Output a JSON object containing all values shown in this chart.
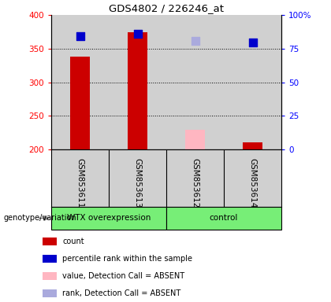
{
  "title": "GDS4802 / 226246_at",
  "samples": [
    "GSM853611",
    "GSM853613",
    "GSM853612",
    "GSM853614"
  ],
  "groups": [
    "WTX overexpression",
    "WTX overexpression",
    "control",
    "control"
  ],
  "group_label": "genotype/variation",
  "bar_bottom": 200,
  "ylim_left": [
    200,
    400
  ],
  "ylim_right": [
    0,
    100
  ],
  "yticks_left": [
    200,
    250,
    300,
    350,
    400
  ],
  "yticks_right": [
    0,
    25,
    50,
    75,
    100
  ],
  "ytick_right_labels": [
    "0",
    "25",
    "50",
    "75",
    "100%"
  ],
  "count_values": [
    338,
    375,
    null,
    211
  ],
  "count_absent": [
    null,
    null,
    229,
    null
  ],
  "rank_values": [
    369,
    372,
    null,
    359
  ],
  "rank_absent": [
    null,
    null,
    362,
    null
  ],
  "bar_color_present": "#cc0000",
  "bar_color_absent": "#FFB6C1",
  "dot_color_present": "#0000cc",
  "dot_color_absent": "#aaaadd",
  "col_bg_color": "#d0d0d0",
  "group_color": "#77ee77",
  "legend_items": [
    {
      "label": "count",
      "color": "#cc0000"
    },
    {
      "label": "percentile rank within the sample",
      "color": "#0000cc"
    },
    {
      "label": "value, Detection Call = ABSENT",
      "color": "#FFB6C1"
    },
    {
      "label": "rank, Detection Call = ABSENT",
      "color": "#aaaadd"
    }
  ],
  "bar_width": 0.35,
  "dot_size": 50
}
